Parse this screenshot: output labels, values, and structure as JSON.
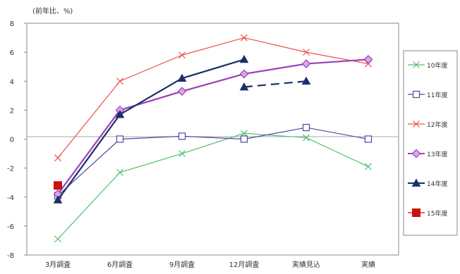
{
  "chart_data": {
    "type": "line",
    "title": "",
    "unit_label": "(前年比、%)",
    "xlabel": "",
    "ylabel": "",
    "ylim": [
      -8,
      8
    ],
    "yticks": [
      -8,
      -6,
      -4,
      -2,
      0,
      2,
      4,
      6,
      8
    ],
    "grid": false,
    "legend_position": "right",
    "categories": [
      "3月調査",
      "6月調査",
      "9月調査",
      "12月調査",
      "実績見込",
      "実績"
    ],
    "series": [
      {
        "name": "10年度",
        "color": "#4fc270",
        "marker": "x",
        "dash": false,
        "values": [
          -6.9,
          -2.3,
          -1.0,
          0.4,
          0.1,
          -1.9
        ]
      },
      {
        "name": "11年度",
        "color": "#4a4aa0",
        "marker": "square-open",
        "dash": false,
        "values": [
          -3.9,
          0.0,
          0.2,
          0.0,
          0.8,
          0.0
        ]
      },
      {
        "name": "12年度",
        "color": "#f0504a",
        "marker": "x",
        "dash": false,
        "values": [
          -1.3,
          4.0,
          5.8,
          7.0,
          6.0,
          5.2
        ]
      },
      {
        "name": "13年度",
        "color": "#9b3fb6",
        "marker": "diamond",
        "dash": false,
        "values": [
          -3.8,
          2.0,
          3.3,
          4.5,
          5.2,
          5.5
        ]
      },
      {
        "name": "14年度",
        "color": "#1a2f6a",
        "marker": "triangle",
        "dash": false,
        "values": [
          -4.2,
          1.7,
          4.2,
          5.5,
          null,
          null
        ]
      },
      {
        "name": "14年度",
        "color": "#1a2f6a",
        "marker": "triangle",
        "dash": true,
        "legend": false,
        "values": [
          null,
          null,
          null,
          3.6,
          4.0,
          null
        ]
      },
      {
        "name": "15年度",
        "color": "#cc1111",
        "marker": "square-filled",
        "dash": false,
        "values": [
          -3.2,
          null,
          null,
          null,
          null,
          null
        ]
      }
    ]
  }
}
